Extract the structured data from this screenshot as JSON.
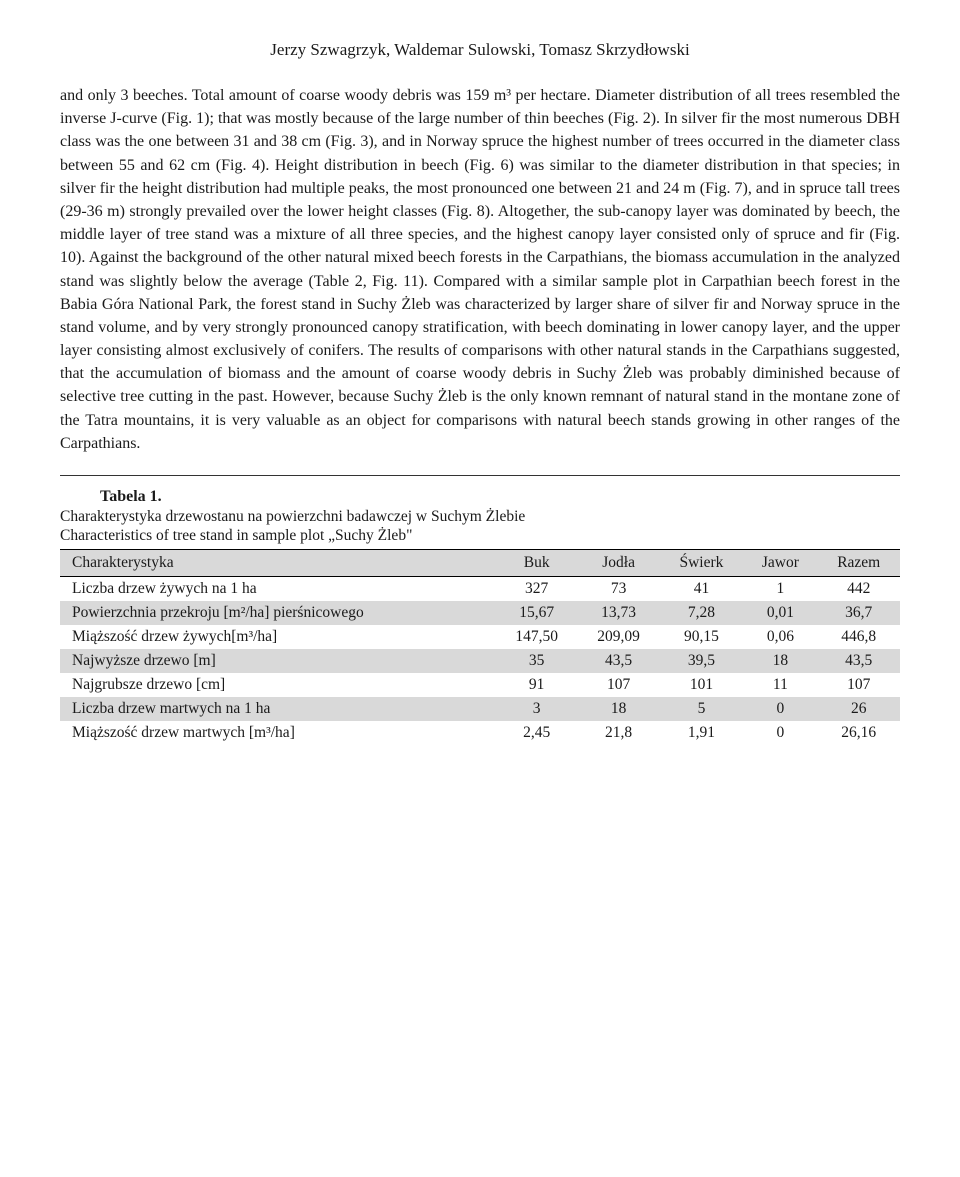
{
  "authors": "Jerzy Szwagrzyk, Waldemar Sulowski, Tomasz Skrzydłowski",
  "body": "and only 3 beeches. Total amount of coarse woody debris was 159 m³ per hectare. Diameter distribution of all trees resembled the inverse J-curve (Fig. 1); that was mostly because of the large number of thin beeches (Fig. 2). In silver fir the most numerous DBH class was the one between 31 and 38 cm (Fig. 3), and in Norway spruce the highest number of trees occurred in the diameter class between 55 and 62 cm (Fig. 4). Height distribution in beech (Fig. 6) was similar to the diameter distribution in that species; in silver fir the height distribution had multiple peaks, the most pronounced one between 21 and 24 m (Fig. 7), and in spruce tall trees (29-36 m) strongly prevailed over the lower height classes (Fig. 8). Altogether, the sub-canopy layer was dominated by beech, the middle layer of tree stand was a mixture of all three species, and the highest canopy layer consisted only of spruce and fir (Fig. 10). Against the background of the other natural mixed beech forests in the Carpathians, the biomass accumulation in the analyzed stand was slightly below the average (Table 2, Fig. 11). Compared with a similar sample plot in Carpathian beech forest in the Babia Góra National Park, the forest stand in Suchy Żleb was characterized by larger share of silver fir and Norway spruce in the stand volume, and by very strongly pronounced canopy stratification, with beech dominating in lower canopy layer, and the upper layer consisting almost exclusively of conifers. The results of comparisons with other natural stands in the Carpathians suggested, that the accumulation of biomass and the amount of coarse woody debris in Suchy Żleb was probably diminished because of selective tree cutting in the past. However, because Suchy Żleb is the only known remnant of natural stand in the montane zone of the Tatra mountains, it is very valuable as an object for comparisons with natural beech stands growing in other ranges of the Carpathians.",
  "table": {
    "label": "Tabela 1.",
    "caption_pl": "Charakterystyka drzewostanu na powierzchni badawczej w Suchym Żlebie",
    "caption_en": "Characteristics of tree stand in sample plot „Suchy Żleb\"",
    "columns": [
      "Charakterystyka",
      "Buk",
      "Jodła",
      "Świerk",
      "Jawor",
      "Razem"
    ],
    "rows": [
      {
        "label": "Liczba drzew żywych na 1 ha",
        "values": [
          "327",
          "73",
          "41",
          "1",
          "442"
        ],
        "alt": false
      },
      {
        "label": "Powierzchnia przekroju [m²/ha] pierśnicowego",
        "values": [
          "15,67",
          "13,73",
          "7,28",
          "0,01",
          "36,7"
        ],
        "alt": true
      },
      {
        "label": "Miąższość drzew żywych[m³/ha]",
        "values": [
          "147,50",
          "209,09",
          "90,15",
          "0,06",
          "446,8"
        ],
        "alt": false
      },
      {
        "label": "Najwyższe drzewo [m]",
        "values": [
          "35",
          "43,5",
          "39,5",
          "18",
          "43,5"
        ],
        "alt": true
      },
      {
        "label": "Najgrubsze drzewo [cm]",
        "values": [
          "91",
          "107",
          "101",
          "11",
          "107"
        ],
        "alt": false
      },
      {
        "label": "Liczba drzew martwych na 1 ha",
        "values": [
          "3",
          "18",
          "5",
          "0",
          "26"
        ],
        "alt": true
      },
      {
        "label": "Miąższość drzew martwych [m³/ha]",
        "values": [
          "2,45",
          "21,8",
          "1,91",
          "0",
          "26,16"
        ],
        "alt": false
      }
    ],
    "header_bg": "#d9d9d9",
    "alt_bg": "#d9d9d9",
    "border_color": "#000000",
    "font_size": 15.5
  }
}
